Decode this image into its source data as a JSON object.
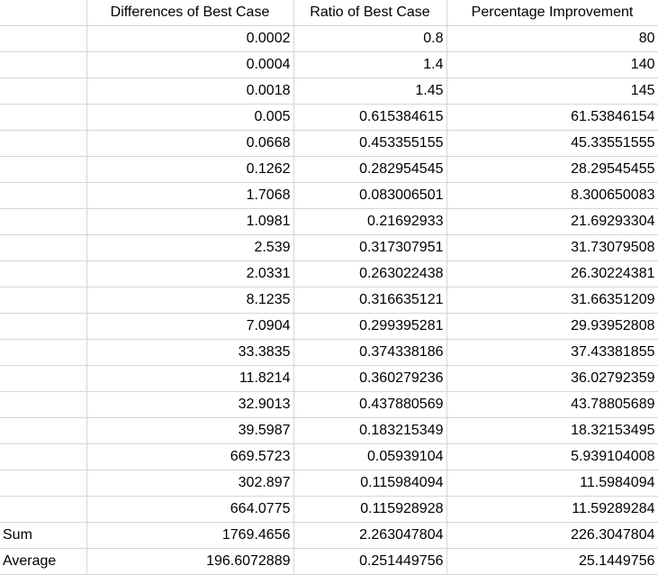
{
  "sheet": {
    "headers": [
      "",
      "Differences of Best Case",
      "Ratio of Best Case",
      "Percentage Improvement"
    ],
    "rows": [
      [
        "",
        "0.0002",
        "0.8",
        "80"
      ],
      [
        "",
        "0.0004",
        "1.4",
        "140"
      ],
      [
        "",
        "0.0018",
        "1.45",
        "145"
      ],
      [
        "",
        "0.005",
        "0.615384615",
        "61.53846154"
      ],
      [
        "",
        "0.0668",
        "0.453355155",
        "45.33551555"
      ],
      [
        "",
        "0.1262",
        "0.282954545",
        "28.29545455"
      ],
      [
        "",
        "1.7068",
        "0.083006501",
        "8.300650083"
      ],
      [
        "",
        "1.0981",
        "0.21692933",
        "21.69293304"
      ],
      [
        "",
        "2.539",
        "0.317307951",
        "31.73079508"
      ],
      [
        "",
        "2.0331",
        "0.263022438",
        "26.30224381"
      ],
      [
        "",
        "8.1235",
        "0.316635121",
        "31.66351209"
      ],
      [
        "",
        "7.0904",
        "0.299395281",
        "29.93952808"
      ],
      [
        "",
        "33.3835",
        "0.374338186",
        "37.43381855"
      ],
      [
        "",
        "11.8214",
        "0.360279236",
        "36.02792359"
      ],
      [
        "",
        "32.9013",
        "0.437880569",
        "43.78805689"
      ],
      [
        "",
        "39.5987",
        "0.183215349",
        "18.32153495"
      ],
      [
        "",
        "669.5723",
        "0.05939104",
        "5.939104008"
      ],
      [
        "",
        "302.897",
        "0.115984094",
        "11.5984094"
      ],
      [
        "",
        "664.0775",
        "0.115928928",
        "11.59289284"
      ],
      [
        "Sum",
        "1769.4656",
        "2.263047804",
        "226.3047804"
      ],
      [
        "Average",
        "196.6072889",
        "0.251449756",
        "25.1449756"
      ]
    ]
  }
}
